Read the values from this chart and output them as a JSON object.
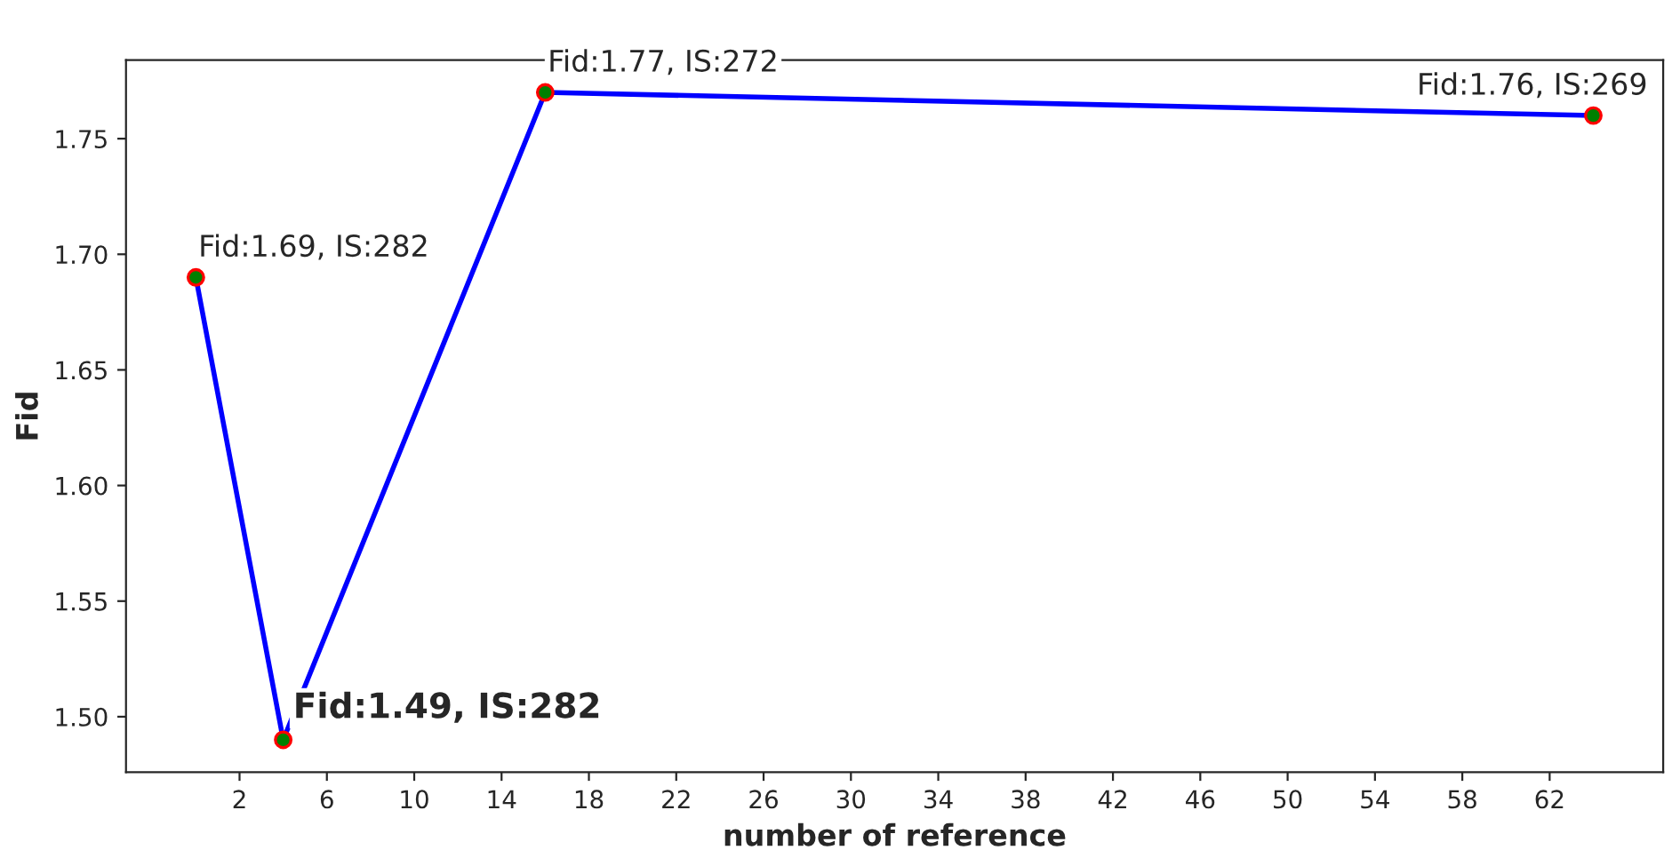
{
  "chart_data": {
    "type": "line",
    "xlabel": "number of reference",
    "ylabel": "Fid",
    "x": [
      0,
      4,
      16,
      64
    ],
    "series": [
      {
        "color": "#0000ff",
        "values": [
          1.69,
          1.49,
          1.77,
          1.76
        ]
      },
      {
        "type": "scatter",
        "color": "#008000",
        "values": [
          1.69,
          1.49,
          1.77,
          1.76
        ]
      }
    ],
    "xlim": [
      -3.2,
      67.2
    ],
    "ylim": [
      1.476,
      1.784
    ],
    "xticks": [
      2,
      6,
      10,
      14,
      18,
      22,
      26,
      30,
      34,
      38,
      42,
      46,
      50,
      54,
      58,
      62
    ],
    "yticks": [
      {
        "value": 1.5,
        "label": "1.50"
      },
      {
        "value": 1.55,
        "label": "1.55"
      },
      {
        "value": 1.6,
        "label": "1.60"
      },
      {
        "value": 1.65,
        "label": "1.65"
      },
      {
        "value": 1.7,
        "label": "1.70"
      },
      {
        "value": 1.75,
        "label": "1.75"
      }
    ],
    "annotations": [
      {
        "text": "Fid:1.69, IS:282",
        "x": 0,
        "y": 1.69
      },
      {
        "text": "Fid:1.49, IS:282",
        "x": 4,
        "y": 1.49
      },
      {
        "text": "Fid:1.77, IS:272",
        "x": 16,
        "y": 1.77
      },
      {
        "text": "Fid:1.76, IS:269",
        "x": 64,
        "y": 1.76
      }
    ],
    "grid": false
  }
}
